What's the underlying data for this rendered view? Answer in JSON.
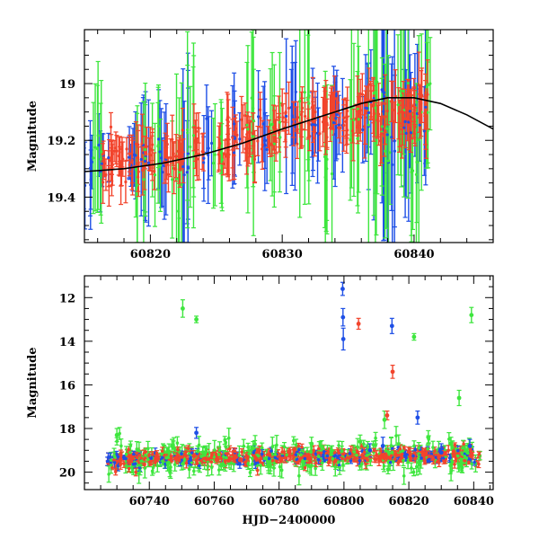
{
  "chart_data": [
    {
      "type": "scatter",
      "panel": "top",
      "title": "",
      "xlabel": "",
      "ylabel": "Magnitude",
      "xlim": [
        60815,
        60846
      ],
      "ylim": [
        19.56,
        18.81
      ],
      "y_inverted": true,
      "x_ticks": [
        60820,
        60830,
        60840
      ],
      "x_tick_labels": [
        "60820",
        "60830",
        "60840"
      ],
      "y_ticks": [
        19,
        19.2,
        19.4
      ],
      "y_tick_labels": [
        "19",
        "19.2",
        "19.4"
      ],
      "grid": false,
      "legend": "none",
      "colors": {
        "blue": "#1e4fe6",
        "green": "#3ee63e",
        "red": "#f2442c",
        "model": "#000000"
      },
      "series": [
        {
          "color": "blue",
          "x": [
            60815.3,
            60816.4,
            60818.6,
            60819.5,
            60821.0,
            60822.7,
            60824.4,
            60826.6,
            60828.6,
            60830.6,
            60832.5,
            60834.3,
            60836.3,
            60837.3,
            60838.4,
            60839.6,
            60840.5
          ],
          "y": [
            19.34,
            19.26,
            19.3,
            19.24,
            19.26,
            19.32,
            19.22,
            19.2,
            19.16,
            19.12,
            19.14,
            19.18,
            19.1,
            19.05,
            19.2,
            19.12,
            19.1
          ],
          "err": [
            0.12,
            0.11,
            0.12,
            0.2,
            0.14,
            0.3,
            0.13,
            0.13,
            0.12,
            0.2,
            0.14,
            0.15,
            0.16,
            0.4,
            0.4,
            0.3,
            0.2
          ]
        },
        {
          "color": "green",
          "x": [
            60816.0,
            60819.2,
            60820.4,
            60822.1,
            60823.2,
            60825.1,
            60827.6,
            60829.4,
            60831.6,
            60833.6,
            60835.4,
            60836.8,
            60838.0,
            60839.2,
            60840.2,
            60841.0
          ],
          "y": [
            19.28,
            19.3,
            19.22,
            19.38,
            19.2,
            19.26,
            19.1,
            19.18,
            19.08,
            19.3,
            19.12,
            19.04,
            19.22,
            19.06,
            19.28,
            19.02
          ],
          "err": [
            0.2,
            0.2,
            0.18,
            0.3,
            0.25,
            0.14,
            0.25,
            0.2,
            0.3,
            0.28,
            0.3,
            0.4,
            0.3,
            0.3,
            0.3,
            0.26
          ]
        },
        {
          "color": "red",
          "x": [
            60816.7,
            60817.3,
            60818.2,
            60819.0,
            60820.0,
            60821.4,
            60822.3,
            60823.6,
            60825.5,
            60826.2,
            60827.2,
            60828.2,
            60829.1,
            60830.1,
            60831.2,
            60832.1,
            60833.2,
            60834.0,
            60835.0,
            60836.0,
            60836.6,
            60837.6,
            60838.7,
            60839.4,
            60840.0,
            60840.8
          ],
          "y": [
            19.3,
            19.25,
            19.28,
            19.27,
            19.26,
            19.24,
            19.25,
            19.23,
            19.2,
            19.2,
            19.18,
            19.16,
            19.17,
            19.15,
            19.14,
            19.12,
            19.13,
            19.1,
            19.12,
            19.1,
            19.08,
            19.12,
            19.1,
            19.11,
            19.1,
            19.09
          ],
          "err": [
            0.06,
            0.06,
            0.06,
            0.07,
            0.06,
            0.07,
            0.06,
            0.07,
            0.06,
            0.08,
            0.07,
            0.07,
            0.06,
            0.07,
            0.07,
            0.06,
            0.07,
            0.06,
            0.07,
            0.08,
            0.07,
            0.08,
            0.08,
            0.08,
            0.08,
            0.09
          ]
        }
      ],
      "model_curve": {
        "x": [
          60815,
          60818,
          60821,
          60824,
          60827,
          60830,
          60832,
          60834,
          60836,
          60838,
          60840,
          60842,
          60844,
          60846
        ],
        "y": [
          19.31,
          19.3,
          19.28,
          19.25,
          19.21,
          19.16,
          19.13,
          19.1,
          19.07,
          19.05,
          19.05,
          19.07,
          19.11,
          19.16
        ]
      }
    },
    {
      "type": "scatter",
      "panel": "bottom",
      "title": "",
      "xlabel": "HJD−2400000",
      "ylabel": "Magnitude",
      "xlim": [
        60720,
        60846
      ],
      "ylim": [
        20.8,
        11.0
      ],
      "y_inverted": true,
      "x_ticks": [
        60740,
        60760,
        60780,
        60800,
        60820,
        60840
      ],
      "x_tick_labels": [
        "60740",
        "60760",
        "60780",
        "60800",
        "60820",
        "60840"
      ],
      "y_ticks": [
        12,
        14,
        16,
        18,
        20
      ],
      "y_tick_labels": [
        "12",
        "14",
        "16",
        "18",
        "20"
      ],
      "grid": false,
      "legend": "none",
      "colors": {
        "blue": "#1e4fe6",
        "green": "#3ee63e",
        "red": "#f2442c",
        "model": "#000000"
      },
      "baseline": {
        "x_range": [
          60727,
          60842
        ],
        "mean": 19.4,
        "trend": [
          19.4,
          19.2
        ]
      },
      "series": [
        {
          "color": "blue",
          "x": [
            60754.5,
            60799.6,
            60799.7,
            60799.8,
            60814.8,
            60822.7,
            60838.8,
            60812.0,
            60808.0,
            60830.0
          ],
          "y": [
            18.2,
            11.6,
            12.9,
            13.9,
            13.3,
            17.5,
            18.8,
            18.8,
            19.0,
            19.1
          ],
          "err": [
            0.25,
            0.3,
            0.4,
            0.5,
            0.35,
            0.3,
            0.3,
            0.4,
            0.3,
            0.4
          ]
        },
        {
          "color": "green",
          "x": [
            60750.3,
            60754.5,
            60821.6,
            60835.5,
            60839.3,
            60730.0,
            60747.0,
            60772.0,
            60790.0,
            60805.0,
            60812.5,
            60826.0,
            60833.0
          ],
          "y": [
            12.5,
            13.0,
            13.8,
            16.6,
            12.8,
            18.3,
            18.8,
            18.9,
            18.7,
            18.6,
            17.6,
            18.4,
            18.7
          ],
          "err": [
            0.4,
            0.15,
            0.15,
            0.35,
            0.35,
            0.3,
            0.3,
            0.3,
            0.3,
            0.3,
            0.4,
            0.3,
            0.3
          ]
        },
        {
          "color": "red",
          "x": [
            60804.5,
            60815.0,
            60813.3
          ],
          "y": [
            13.2,
            15.4,
            17.4
          ],
          "err": [
            0.25,
            0.3,
            0.2
          ]
        }
      ]
    }
  ]
}
